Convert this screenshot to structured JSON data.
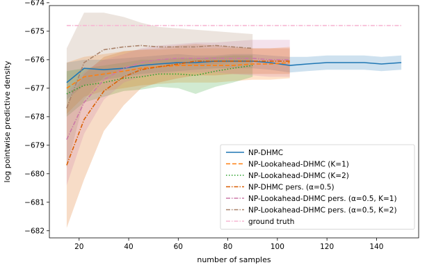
{
  "chart_data": {
    "type": "line",
    "title": "",
    "xlabel": "number of samples",
    "ylabel": "log pointwise predictive density",
    "xlim": [
      8,
      157
    ],
    "ylim": [
      -682.25,
      -674.1
    ],
    "xticks": [
      20,
      40,
      60,
      80,
      100,
      120,
      140
    ],
    "yticks": [
      -682,
      -681,
      -680,
      -679,
      -678,
      -677,
      -676,
      -675,
      -674
    ],
    "xtick_labels": [
      "20",
      "40",
      "60",
      "80",
      "100",
      "120",
      "140"
    ],
    "ytick_labels": [
      "−682",
      "−681",
      "−680",
      "−679",
      "−678",
      "−677",
      "−676",
      "−675",
      "−674"
    ],
    "legend_position": "lower-right",
    "grid": false,
    "series": [
      {
        "name": "NP-DHMC",
        "color": "#1f77b4",
        "style": "solid",
        "x": [
          15,
          22,
          30,
          38,
          45,
          52,
          60,
          67,
          75,
          82,
          90,
          97,
          105,
          112,
          120,
          127,
          135,
          142,
          150
        ],
        "y": [
          -676.8,
          -676.3,
          -676.35,
          -676.3,
          -676.2,
          -676.15,
          -676.1,
          -676.1,
          -676.05,
          -676.05,
          -676.05,
          -676.1,
          -676.2,
          -676.15,
          -676.1,
          -676.1,
          -676.1,
          -676.15,
          -676.1
        ],
        "band_upper": [
          -676.1,
          -676.0,
          -676.0,
          -675.95,
          -675.9,
          -675.85,
          -675.8,
          -675.85,
          -675.85,
          -675.8,
          -675.8,
          -675.85,
          -675.9,
          -675.9,
          -675.85,
          -675.85,
          -675.85,
          -675.9,
          -675.85
        ],
        "band_lower": [
          -677.4,
          -676.9,
          -676.7,
          -676.6,
          -676.5,
          -676.45,
          -676.4,
          -676.35,
          -676.3,
          -676.3,
          -676.3,
          -676.35,
          -676.45,
          -676.4,
          -676.35,
          -676.35,
          -676.35,
          -676.4,
          -676.35
        ]
      },
      {
        "name": "NP-Lookahead-DHMC (K=1)",
        "color": "#ff7f0e",
        "style": "dashed",
        "x": [
          15,
          22,
          30,
          38,
          45,
          52,
          60,
          67,
          75,
          82,
          90,
          97,
          105
        ],
        "y": [
          -677.0,
          -676.6,
          -676.5,
          -676.4,
          -676.3,
          -676.25,
          -676.2,
          -676.2,
          -676.2,
          -676.2,
          -676.15,
          -676.15,
          -676.1
        ],
        "band_upper": [
          -676.1,
          -675.9,
          -675.8,
          -675.7,
          -675.65,
          -675.65,
          -675.6,
          -675.6,
          -675.6,
          -675.6,
          -675.6,
          -675.6,
          -675.55
        ],
        "band_lower": [
          -677.9,
          -677.3,
          -677.1,
          -677.0,
          -676.9,
          -676.85,
          -676.8,
          -676.8,
          -676.8,
          -676.75,
          -676.7,
          -676.7,
          -676.65
        ]
      },
      {
        "name": "NP-Lookahead-DHMC (K=2)",
        "color": "#2ca02c",
        "style": "dotted",
        "x": [
          15,
          22,
          30,
          38,
          45,
          52,
          60,
          67,
          75,
          82,
          90
        ],
        "y": [
          -677.2,
          -676.9,
          -676.8,
          -676.65,
          -676.6,
          -676.5,
          -676.5,
          -676.55,
          -676.4,
          -676.3,
          -676.2
        ],
        "band_upper": [
          -676.4,
          -676.3,
          -676.2,
          -676.1,
          -676.0,
          -676.0,
          -675.95,
          -675.95,
          -675.9,
          -675.85,
          -675.85
        ],
        "band_lower": [
          -678.0,
          -677.5,
          -677.3,
          -677.1,
          -677.05,
          -676.95,
          -677.0,
          -677.2,
          -676.95,
          -676.8,
          -676.6
        ]
      },
      {
        "name": "NP-DHMC pers. (α=0.5)",
        "color": "#d95f02",
        "style": "dashdot",
        "x": [
          15,
          22,
          30,
          38,
          45,
          52,
          60,
          67,
          75,
          82,
          90,
          97,
          105
        ],
        "y": [
          -679.7,
          -678.1,
          -677.1,
          -676.6,
          -676.35,
          -676.25,
          -676.15,
          -676.05,
          -676.05,
          -676.05,
          -676.05,
          -676.05,
          -676.05
        ],
        "band_upper": [
          -677.6,
          -676.5,
          -675.9,
          -675.7,
          -675.65,
          -675.6,
          -675.5,
          -675.45,
          -675.5,
          -675.55,
          -675.6,
          -675.6,
          -675.6
        ],
        "band_lower": [
          -681.9,
          -680.2,
          -678.5,
          -677.6,
          -677.0,
          -676.8,
          -676.65,
          -676.55,
          -676.55,
          -676.5,
          -676.5,
          -676.5,
          -676.5
        ]
      },
      {
        "name": "NP-Lookahead-DHMC pers. (α=0.5, K=1)",
        "color": "#cc79a7",
        "style": "dashdot",
        "x": [
          15,
          22,
          30,
          38,
          45,
          52,
          60,
          67,
          75,
          82,
          90,
          97,
          105
        ],
        "y": [
          -678.8,
          -677.5,
          -676.7,
          -676.3,
          -676.1,
          -676.0,
          -675.95,
          -675.95,
          -675.95,
          -675.95,
          -675.95,
          -676.0,
          -676.0
        ],
        "band_upper": [
          -677.2,
          -676.4,
          -676.0,
          -675.8,
          -675.6,
          -675.5,
          -675.45,
          -675.4,
          -675.4,
          -675.35,
          -675.3,
          -675.3,
          -675.3
        ],
        "band_lower": [
          -680.4,
          -678.6,
          -677.4,
          -676.8,
          -676.6,
          -676.5,
          -676.45,
          -676.45,
          -676.45,
          -676.5,
          -676.55,
          -676.6,
          -676.6
        ]
      },
      {
        "name": "NP-Lookahead-DHMC pers. (α=0.5, K=2)",
        "color": "#a9826a",
        "style": "dashdot",
        "x": [
          15,
          22,
          30,
          38,
          45,
          52,
          60,
          67,
          75,
          82,
          90
        ],
        "y": [
          -677.7,
          -676.1,
          -675.65,
          -675.55,
          -675.5,
          -675.55,
          -675.55,
          -675.55,
          -675.5,
          -675.55,
          -675.6
        ],
        "band_upper": [
          -675.6,
          -674.35,
          -674.35,
          -674.5,
          -674.7,
          -674.85,
          -674.9,
          -674.95,
          -675.0,
          -675.05,
          -675.1
        ],
        "band_lower": [
          -679.8,
          -677.4,
          -676.6,
          -676.3,
          -676.15,
          -676.15,
          -676.2,
          -676.2,
          -676.15,
          -676.1,
          -676.1
        ]
      },
      {
        "name": "ground truth",
        "color": "#f7b6d2",
        "style": "dashdot",
        "x": [
          15,
          150
        ],
        "y": [
          -674.8,
          -674.8
        ]
      }
    ]
  }
}
